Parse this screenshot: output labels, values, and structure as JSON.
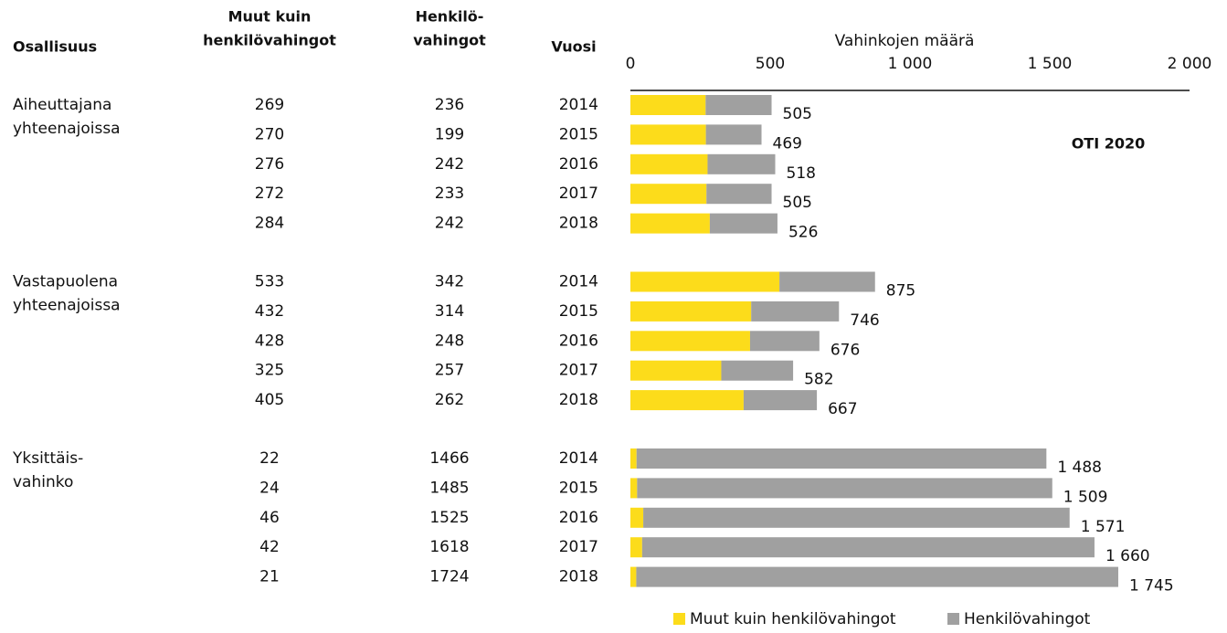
{
  "chart_data": {
    "type": "bar",
    "orientation": "horizontal",
    "stacked": true,
    "column_headers": [
      [
        "Osallisuus"
      ],
      [
        "Muut kuin",
        "henkilövahingot"
      ],
      [
        "Henkilö-",
        "vahingot"
      ],
      [
        "Vuosi"
      ]
    ],
    "groups": [
      [
        "Aiheuttajana",
        "yhteenajoissa"
      ],
      [
        "Vastapuolena",
        "yhteenajoissa"
      ],
      [
        "Yksittäis-",
        "vahinko"
      ]
    ],
    "categories": [
      "2014",
      "2015",
      "2016",
      "2017",
      "2018",
      "2014",
      "2015",
      "2016",
      "2017",
      "2018",
      "2014",
      "2015",
      "2016",
      "2017",
      "2018"
    ],
    "series": [
      {
        "name": "Muut kuin henkilövahingot",
        "color": "#fcdc1b",
        "values": [
          269,
          270,
          276,
          272,
          284,
          533,
          432,
          428,
          325,
          405,
          22,
          24,
          46,
          42,
          21
        ]
      },
      {
        "name": "Henkilövahingot",
        "color": "#a0a0a0",
        "values": [
          236,
          199,
          242,
          233,
          242,
          342,
          314,
          248,
          257,
          262,
          1466,
          1485,
          1525,
          1618,
          1724
        ]
      }
    ],
    "totals": [
      505,
      469,
      518,
      505,
      526,
      875,
      746,
      676,
      582,
      667,
      1488,
      1509,
      1571,
      1660,
      1745
    ],
    "total_labels": [
      "505",
      "469",
      "518",
      "505",
      "526",
      "875",
      "746",
      "676",
      "582",
      "667",
      "1 488",
      "1 509",
      "1 571",
      "1 660",
      "1 745"
    ],
    "xlabel": "Vahinkojen määrä",
    "xlim": [
      0,
      2000
    ],
    "xticks": [
      0,
      500,
      {
        "value": 1000,
        "label": "1 000"
      },
      {
        "value": 1500,
        "label": "1 500"
      },
      {
        "value": 2000,
        "label": "2 000"
      }
    ],
    "annotation": "OTI 2020",
    "legend": "bottom"
  }
}
